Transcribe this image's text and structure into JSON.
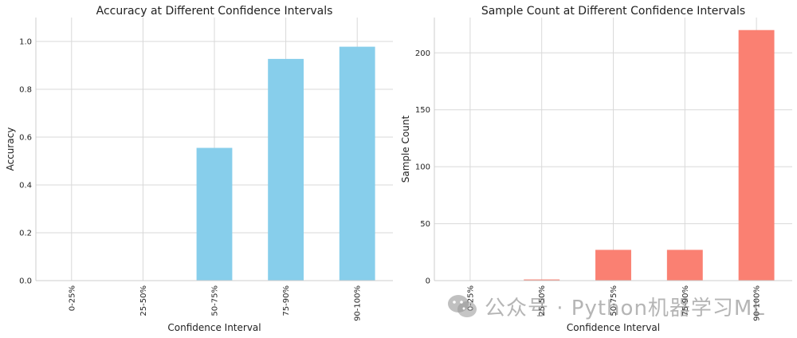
{
  "chart_data": [
    {
      "type": "bar",
      "title": "Accuracy at Different Confidence Intervals",
      "xlabel": "Confidence Interval",
      "ylabel": "Accuracy",
      "categories": [
        "0-25%",
        "25-50%",
        "50-75%",
        "75-90%",
        "90-100%"
      ],
      "values": [
        0,
        0,
        0.555,
        0.927,
        0.978
      ],
      "ylim": [
        0,
        1.1
      ],
      "yticks": [
        0.0,
        0.2,
        0.4,
        0.6,
        0.8,
        1.0
      ],
      "ytick_labels": [
        "0.0",
        "0.2",
        "0.4",
        "0.6",
        "0.8",
        "1.0"
      ],
      "color": "#87CEEB",
      "grid": true
    },
    {
      "type": "bar",
      "title": "Sample Count at Different Confidence Intervals",
      "xlabel": "Confidence Interval",
      "ylabel": "Sample Count",
      "categories": [
        "0-25%",
        "25-50%",
        "50-75%",
        "75-90%",
        "90-100%"
      ],
      "values": [
        0,
        1,
        27,
        27,
        220
      ],
      "ylim": [
        0,
        231
      ],
      "yticks": [
        0,
        50,
        100,
        150,
        200
      ],
      "ytick_labels": [
        "0",
        "50",
        "100",
        "150",
        "200"
      ],
      "color": "#FA8072",
      "grid": true
    }
  ],
  "watermark": {
    "text": "公众号 · Python机器学习ML",
    "icon": "wechat-icon"
  }
}
